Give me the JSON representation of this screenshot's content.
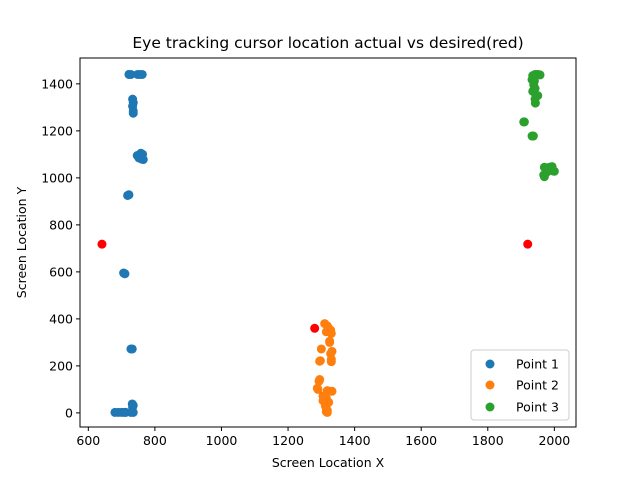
{
  "chart_data": {
    "type": "scatter",
    "title": "Eye tracking cursor location actual vs desired(red)",
    "xlabel": "Screen Location X",
    "ylabel": "Screen Location Y",
    "xlim": [
      575,
      2065
    ],
    "ylim": [
      -60,
      1510
    ],
    "xticks": [
      600,
      800,
      1000,
      1200,
      1400,
      1600,
      1800,
      2000
    ],
    "yticks": [
      0,
      200,
      400,
      600,
      800,
      1000,
      1200,
      1400
    ],
    "grid": false,
    "legend_position": "lower-right",
    "series": [
      {
        "name": "Point 1",
        "color": "#1f77b4",
        "points": [
          [
            722,
            1440
          ],
          [
            728,
            1440
          ],
          [
            748,
            1440
          ],
          [
            755,
            1440
          ],
          [
            762,
            1440
          ],
          [
            733,
            1335
          ],
          [
            735,
            1320
          ],
          [
            733,
            1305
          ],
          [
            735,
            1285
          ],
          [
            735,
            1275
          ],
          [
            747,
            1095
          ],
          [
            758,
            1105
          ],
          [
            763,
            1100
          ],
          [
            752,
            1085
          ],
          [
            760,
            1080
          ],
          [
            765,
            1078
          ],
          [
            722,
            928
          ],
          [
            718,
            925
          ],
          [
            706,
            595
          ],
          [
            710,
            592
          ],
          [
            728,
            272
          ],
          [
            732,
            272
          ],
          [
            732,
            38
          ],
          [
            735,
            32
          ],
          [
            733,
            25
          ],
          [
            680,
            2
          ],
          [
            690,
            2
          ],
          [
            700,
            2
          ],
          [
            708,
            2
          ],
          [
            712,
            2
          ],
          [
            728,
            2
          ],
          [
            735,
            2
          ]
        ]
      },
      {
        "name": "Point 2",
        "color": "#ff7f0e",
        "points": [
          [
            1310,
            380
          ],
          [
            1318,
            370
          ],
          [
            1322,
            360
          ],
          [
            1328,
            352
          ],
          [
            1315,
            345
          ],
          [
            1330,
            338
          ],
          [
            1325,
            305
          ],
          [
            1325,
            300
          ],
          [
            1300,
            272
          ],
          [
            1332,
            262
          ],
          [
            1328,
            252
          ],
          [
            1297,
            222
          ],
          [
            1295,
            220
          ],
          [
            1330,
            228
          ],
          [
            1330,
            218
          ],
          [
            1295,
            142
          ],
          [
            1293,
            135
          ],
          [
            1288,
            105
          ],
          [
            1290,
            100
          ],
          [
            1318,
            95
          ],
          [
            1325,
            92
          ],
          [
            1332,
            92
          ],
          [
            1305,
            72
          ],
          [
            1315,
            62
          ],
          [
            1305,
            52
          ],
          [
            1322,
            45
          ],
          [
            1312,
            30
          ],
          [
            1315,
            18
          ],
          [
            1318,
            10
          ],
          [
            1315,
            5
          ],
          [
            1318,
            2
          ]
        ]
      },
      {
        "name": "Point 3",
        "color": "#2ca02c",
        "points": [
          [
            1935,
            1435
          ],
          [
            1942,
            1440
          ],
          [
            1948,
            1440
          ],
          [
            1952,
            1440
          ],
          [
            1957,
            1438
          ],
          [
            1933,
            1418
          ],
          [
            1940,
            1412
          ],
          [
            1938,
            1395
          ],
          [
            1942,
            1380
          ],
          [
            1935,
            1368
          ],
          [
            1945,
            1350
          ],
          [
            1950,
            1350
          ],
          [
            1942,
            1335
          ],
          [
            1943,
            1318
          ],
          [
            1908,
            1238
          ],
          [
            1910,
            1238
          ],
          [
            1933,
            1178
          ],
          [
            1937,
            1178
          ],
          [
            1970,
            1045
          ],
          [
            1975,
            1042
          ],
          [
            1985,
            1045
          ],
          [
            1993,
            1048
          ],
          [
            1995,
            1030
          ],
          [
            2000,
            1028
          ],
          [
            1978,
            1025
          ],
          [
            1968,
            1012
          ],
          [
            1970,
            1005
          ]
        ]
      }
    ],
    "desired_points": {
      "color": "#ff0000",
      "points": [
        [
          641,
          718
        ],
        [
          1920,
          718
        ],
        [
          1280,
          360
        ]
      ]
    }
  }
}
